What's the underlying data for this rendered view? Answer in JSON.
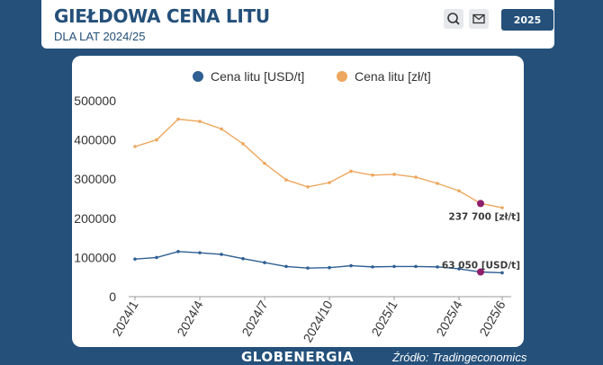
{
  "header": {
    "title": "GIEŁDOWA CENA LITU",
    "subtitle": "DLA LAT 2024/25",
    "year_button": "2025",
    "icons": [
      "search-icon",
      "mail-icon"
    ]
  },
  "footer": {
    "brand": "GLOBENERGIA",
    "source": "Źródło: Tradingeconomics"
  },
  "colors": {
    "background": "#24507a",
    "usd": "#2f5f93",
    "pln": "#eda75e",
    "highlight": "#8e1f6b",
    "axis_text": "#333333"
  },
  "chart_data": {
    "type": "line",
    "legend_position": "top-center",
    "x": [
      "2024/1",
      "2024/2",
      "2024/3",
      "2024/4",
      "2024/5",
      "2024/6",
      "2024/7",
      "2024/8",
      "2024/9",
      "2024/10",
      "2024/11",
      "2024/12",
      "2025/1",
      "2025/2",
      "2025/3",
      "2025/4",
      "2025/5",
      "2025/6"
    ],
    "x_tick_labels": [
      "2024/1",
      "2024/4",
      "2024/7",
      "2024/10",
      "2025/1",
      "2025/4",
      "2025/6"
    ],
    "ylim": [
      0,
      500000
    ],
    "y_ticks": [
      0,
      100000,
      200000,
      300000,
      400000,
      500000
    ],
    "grid": false,
    "series": [
      {
        "name": "Cena litu [USD/t]",
        "values": [
          96000,
          100000,
          115000,
          112000,
          108000,
          97000,
          87000,
          77000,
          73000,
          74000,
          79000,
          76000,
          77000,
          77000,
          76000,
          71000,
          63050,
          61000
        ],
        "annotation": {
          "index": 16,
          "text": "63 050 [USD/t]"
        }
      },
      {
        "name": "Cena litu [zł/t]",
        "values": [
          383000,
          400000,
          453000,
          447000,
          428000,
          390000,
          340000,
          298000,
          280000,
          291000,
          320000,
          310000,
          312000,
          305000,
          289000,
          270000,
          237700,
          227000
        ],
        "annotation": {
          "index": 16,
          "text": "237 700 [zł/t]"
        }
      }
    ]
  }
}
